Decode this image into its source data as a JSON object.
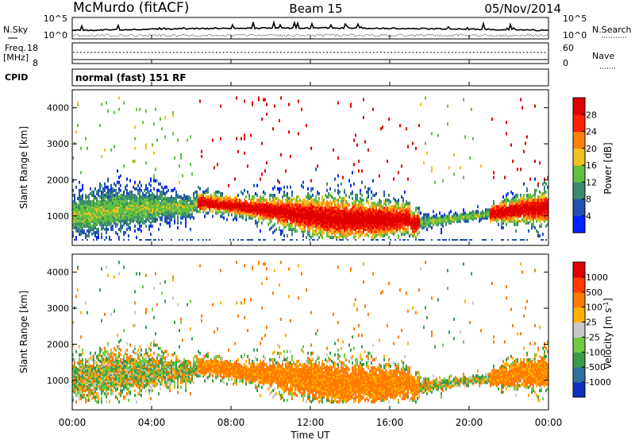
{
  "header": {
    "station": "McMurdo (fitACF)",
    "beam": "Beam 15",
    "date": "05/Nov/2014"
  },
  "top_panels": {
    "nsky_label": "N.Sky",
    "nsky_ticks": [
      "10^5",
      "10^0"
    ],
    "nsearch_label": "N.Search",
    "nsearch_ticks": [
      "10^5",
      "10^0"
    ],
    "freq_label": "Freq.",
    "freq_unit": "[MHz]",
    "freq_ticks": [
      "18",
      "8"
    ],
    "nave_label": "Nave",
    "nave_ticks": [
      "60",
      "0"
    ],
    "cpid_label": "CPID",
    "cpid_text": "normal (fast) 151 RF"
  },
  "chart_data": [
    {
      "type": "heatmap",
      "name": "power",
      "ylabel": "Slant Range [km]",
      "yticks": [
        "1000",
        "2000",
        "3000",
        "4000"
      ],
      "ylim": [
        180,
        4500
      ],
      "colorbar": {
        "title": "Power [dB]",
        "labels": [
          "4",
          "8",
          "12",
          "16",
          "20",
          "24",
          "28"
        ],
        "colors": [
          "#0020ff",
          "#2050b0",
          "#3a8a70",
          "#60c040",
          "#f0c020",
          "#ff8010",
          "#ff2000",
          "#e00000"
        ]
      }
    },
    {
      "type": "heatmap",
      "name": "velocity",
      "ylabel": "Slant Range [km]",
      "yticks": [
        "1000",
        "2000",
        "3000",
        "4000"
      ],
      "ylim": [
        180,
        4500
      ],
      "colorbar": {
        "title": "Velocity [m s",
        "title_sup": "-1",
        "labels": [
          "1000",
          "500",
          "100",
          "25",
          "-25",
          "-100",
          "-500",
          "-1000"
        ],
        "colors": [
          "#1030c0",
          "#3070a0",
          "#3a9a4a",
          "#70cc40",
          "#c8c8c8",
          "#ffb000",
          "#ff7a00",
          "#ff3a00",
          "#e00000"
        ]
      }
    }
  ],
  "xaxis": {
    "ticks": [
      "00:00",
      "04:00",
      "08:00",
      "12:00",
      "16:00",
      "20:00",
      "00:00"
    ],
    "label": "Time UT"
  }
}
